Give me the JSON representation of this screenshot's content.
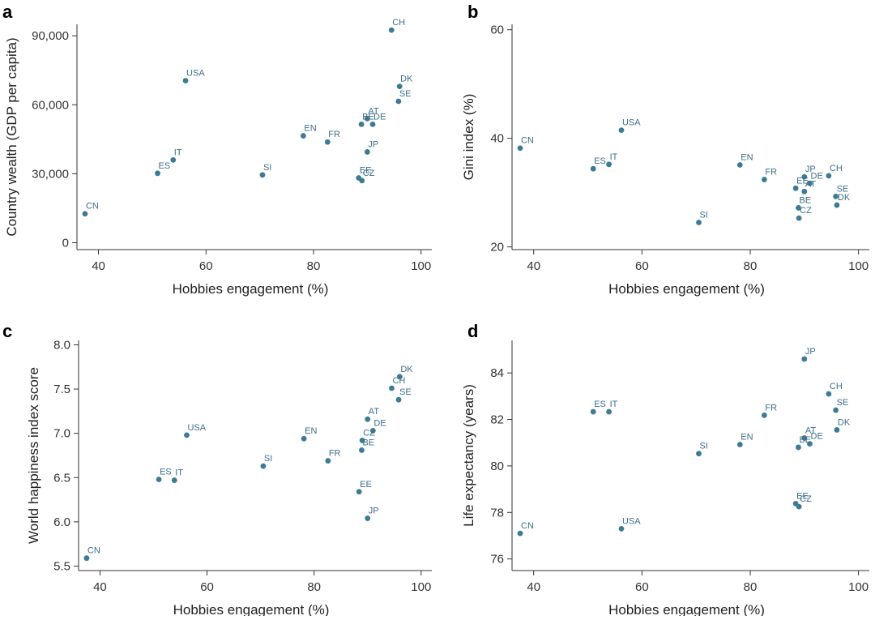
{
  "figure": {
    "point_color": "#3d7a94",
    "label_color": "#3d6f8a"
  },
  "chart_data": [
    {
      "panel": "a",
      "type": "scatter",
      "xlabel": "Hobbies engagement (%)",
      "ylabel": "Country wealth (GDP per capita)",
      "xlim": [
        36,
        102
      ],
      "ylim": [
        -3000,
        95000
      ],
      "xticks": [
        {
          "value": 40,
          "label": "40"
        },
        {
          "value": 60,
          "label": "60"
        },
        {
          "value": 80,
          "label": "80"
        },
        {
          "value": 100,
          "label": "100"
        }
      ],
      "yticks": [
        {
          "value": 0,
          "label": "0"
        },
        {
          "value": 30000,
          "label": "30,000"
        },
        {
          "value": 60000,
          "label": "60,000"
        },
        {
          "value": 90000,
          "label": "90,000"
        }
      ],
      "points": [
        {
          "label": "CH",
          "x": 94.5,
          "y": 92500
        },
        {
          "label": "USA",
          "x": 56.2,
          "y": 70500
        },
        {
          "label": "DK",
          "x": 96.0,
          "y": 68000
        },
        {
          "label": "SE",
          "x": 95.8,
          "y": 61500
        },
        {
          "label": "AT",
          "x": 90.0,
          "y": 54000
        },
        {
          "label": "BE",
          "x": 88.9,
          "y": 51500
        },
        {
          "label": "DE",
          "x": 91.0,
          "y": 51500
        },
        {
          "label": "EN",
          "x": 78.1,
          "y": 46500
        },
        {
          "label": "FR",
          "x": 82.6,
          "y": 43800
        },
        {
          "label": "JP",
          "x": 90.0,
          "y": 39500
        },
        {
          "label": "IT",
          "x": 53.9,
          "y": 36000
        },
        {
          "label": "ES",
          "x": 51.0,
          "y": 30200
        },
        {
          "label": "SI",
          "x": 70.5,
          "y": 29500
        },
        {
          "label": "EE",
          "x": 88.4,
          "y": 28200
        },
        {
          "label": "CZ",
          "x": 89.0,
          "y": 27000
        },
        {
          "label": "CN",
          "x": 37.5,
          "y": 12600
        }
      ]
    },
    {
      "panel": "b",
      "type": "scatter",
      "xlabel": "Hobbies engagement (%)",
      "ylabel": "Gini index (%)",
      "xlim": [
        36,
        102
      ],
      "ylim": [
        19.5,
        61
      ],
      "xticks": [
        {
          "value": 40,
          "label": "40"
        },
        {
          "value": 60,
          "label": "60"
        },
        {
          "value": 80,
          "label": "80"
        },
        {
          "value": 100,
          "label": "100"
        }
      ],
      "yticks": [
        {
          "value": 20,
          "label": "20"
        },
        {
          "value": 40,
          "label": "40"
        },
        {
          "value": 60,
          "label": "60"
        }
      ],
      "points": [
        {
          "label": "USA",
          "x": 56.2,
          "y": 41.5
        },
        {
          "label": "CN",
          "x": 37.5,
          "y": 38.2
        },
        {
          "label": "IT",
          "x": 53.9,
          "y": 35.2
        },
        {
          "label": "ES",
          "x": 51.0,
          "y": 34.4
        },
        {
          "label": "EN",
          "x": 78.1,
          "y": 35.1
        },
        {
          "label": "JP",
          "x": 90.0,
          "y": 32.9
        },
        {
          "label": "CH",
          "x": 94.5,
          "y": 33.1
        },
        {
          "label": "DE",
          "x": 91.0,
          "y": 31.7
        },
        {
          "label": "FR",
          "x": 82.6,
          "y": 32.4
        },
        {
          "label": "EE",
          "x": 88.4,
          "y": 30.8
        },
        {
          "label": "AT",
          "x": 90.0,
          "y": 30.2
        },
        {
          "label": "SE",
          "x": 95.8,
          "y": 29.3
        },
        {
          "label": "DK",
          "x": 96.0,
          "y": 27.7
        },
        {
          "label": "BE",
          "x": 88.9,
          "y": 27.2
        },
        {
          "label": "CZ",
          "x": 89.0,
          "y": 25.3
        },
        {
          "label": "SI",
          "x": 70.5,
          "y": 24.5
        }
      ]
    },
    {
      "panel": "c",
      "type": "scatter",
      "xlabel": "Hobbies engagement (%)",
      "ylabel": "World happiness index score",
      "xlim": [
        36,
        102
      ],
      "ylim": [
        5.45,
        8.05
      ],
      "xticks": [
        {
          "value": 40,
          "label": "40"
        },
        {
          "value": 60,
          "label": "60"
        },
        {
          "value": 80,
          "label": "80"
        },
        {
          "value": 100,
          "label": "100"
        }
      ],
      "yticks": [
        {
          "value": 5.5,
          "label": "5.5"
        },
        {
          "value": 6.0,
          "label": "6.0"
        },
        {
          "value": 6.5,
          "label": "6.5"
        },
        {
          "value": 7.0,
          "label": "7.0"
        },
        {
          "value": 7.5,
          "label": "7.5"
        },
        {
          "value": 8.0,
          "label": "8.0"
        }
      ],
      "points": [
        {
          "label": "DK",
          "x": 96.0,
          "y": 7.64
        },
        {
          "label": "CH",
          "x": 94.5,
          "y": 7.51
        },
        {
          "label": "SE",
          "x": 95.8,
          "y": 7.38
        },
        {
          "label": "AT",
          "x": 90.0,
          "y": 7.16
        },
        {
          "label": "DE",
          "x": 91.0,
          "y": 7.03
        },
        {
          "label": "USA",
          "x": 56.2,
          "y": 6.98
        },
        {
          "label": "EN",
          "x": 78.1,
          "y": 6.94
        },
        {
          "label": "CZ",
          "x": 89.0,
          "y": 6.92
        },
        {
          "label": "BE",
          "x": 88.9,
          "y": 6.81
        },
        {
          "label": "FR",
          "x": 82.6,
          "y": 6.69
        },
        {
          "label": "SI",
          "x": 70.5,
          "y": 6.63
        },
        {
          "label": "ES",
          "x": 51.0,
          "y": 6.48
        },
        {
          "label": "IT",
          "x": 53.9,
          "y": 6.47
        },
        {
          "label": "EE",
          "x": 88.4,
          "y": 6.34
        },
        {
          "label": "JP",
          "x": 90.0,
          "y": 6.04
        },
        {
          "label": "CN",
          "x": 37.5,
          "y": 5.59
        }
      ]
    },
    {
      "panel": "d",
      "type": "scatter",
      "xlabel": "Hobbies engagement (%)",
      "ylabel": "Life expectancy (years)",
      "xlim": [
        36,
        102
      ],
      "ylim": [
        75.5,
        85.4
      ],
      "xticks": [
        {
          "value": 40,
          "label": "40"
        },
        {
          "value": 60,
          "label": "60"
        },
        {
          "value": 80,
          "label": "80"
        },
        {
          "value": 100,
          "label": "100"
        }
      ],
      "yticks": [
        {
          "value": 76,
          "label": "76"
        },
        {
          "value": 78,
          "label": "78"
        },
        {
          "value": 80,
          "label": "80"
        },
        {
          "value": 82,
          "label": "82"
        },
        {
          "value": 84,
          "label": "84"
        }
      ],
      "points": [
        {
          "label": "JP",
          "x": 90.0,
          "y": 84.6
        },
        {
          "label": "CH",
          "x": 94.5,
          "y": 83.1
        },
        {
          "label": "SE",
          "x": 95.8,
          "y": 82.4
        },
        {
          "label": "ES",
          "x": 51.0,
          "y": 82.33
        },
        {
          "label": "IT",
          "x": 53.9,
          "y": 82.33
        },
        {
          "label": "FR",
          "x": 82.6,
          "y": 82.18
        },
        {
          "label": "DK",
          "x": 96.0,
          "y": 81.55
        },
        {
          "label": "AT",
          "x": 90.0,
          "y": 81.2
        },
        {
          "label": "DE",
          "x": 91.0,
          "y": 80.95
        },
        {
          "label": "EN",
          "x": 78.1,
          "y": 80.92
        },
        {
          "label": "BE",
          "x": 88.9,
          "y": 80.8
        },
        {
          "label": "SI",
          "x": 70.5,
          "y": 80.53
        },
        {
          "label": "EE",
          "x": 88.4,
          "y": 78.38
        },
        {
          "label": "CZ",
          "x": 89.0,
          "y": 78.25
        },
        {
          "label": "USA",
          "x": 56.2,
          "y": 77.3
        },
        {
          "label": "CN",
          "x": 37.5,
          "y": 77.1
        }
      ]
    }
  ]
}
